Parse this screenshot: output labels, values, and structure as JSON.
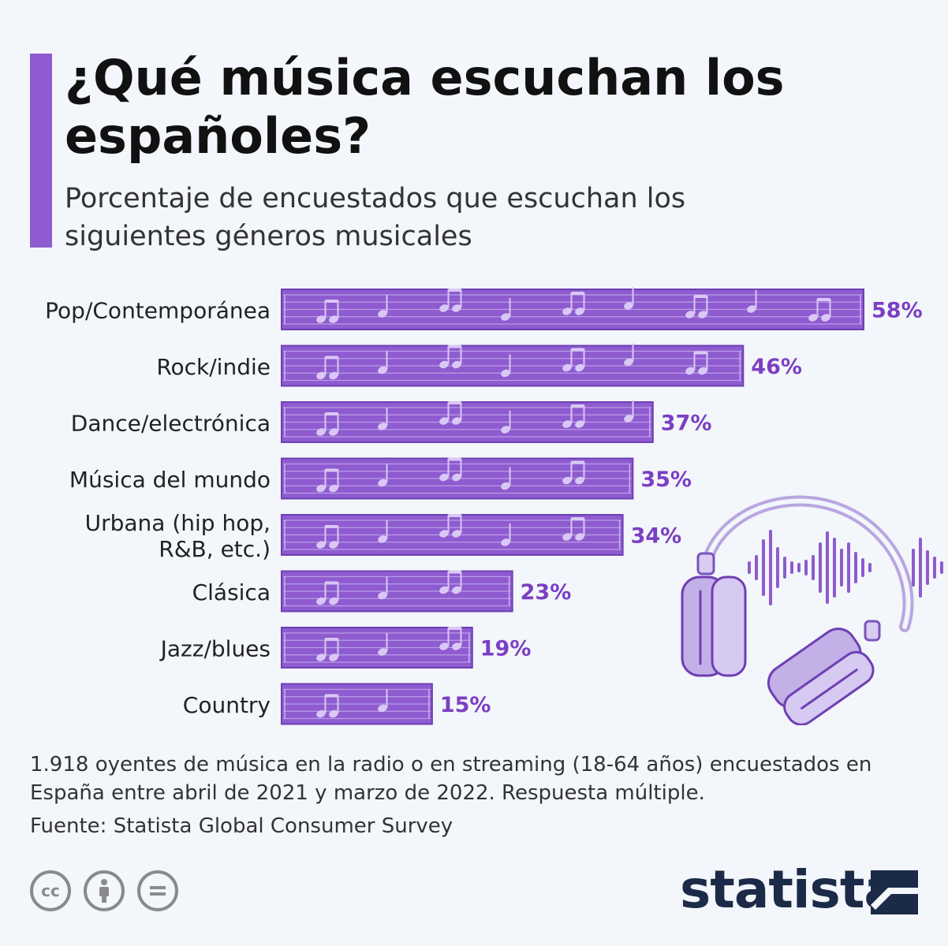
{
  "header": {
    "title": "¿Qué música escuchan los españoles?",
    "subtitle": "Porcentaje de encuestados que escuchan los siguientes géneros musicales"
  },
  "colors": {
    "accent": "#8e5bd0",
    "bar": "#8e5bd0",
    "bar_border": "#6e3fb4",
    "value_label": "#7b3fc4",
    "brand": "#1b2a47"
  },
  "chart_data": {
    "type": "bar",
    "orientation": "horizontal",
    "categories": [
      "Pop/Contemporánea",
      "Rock/indie",
      "Dance/electrónica",
      "Música del mundo",
      "Urbana (hip hop, R&B, etc.)",
      "Clásica",
      "Jazz/blues",
      "Country"
    ],
    "category_lines": [
      [
        "Pop/Contemporánea"
      ],
      [
        "Rock/indie"
      ],
      [
        "Dance/electrónica"
      ],
      [
        "Música del mundo"
      ],
      [
        "Urbana (hip hop,",
        "R&B, etc.)"
      ],
      [
        "Clásica"
      ],
      [
        "Jazz/blues"
      ],
      [
        "Country"
      ]
    ],
    "values": [
      58,
      46,
      37,
      35,
      34,
      23,
      19,
      15
    ],
    "value_labels": [
      "58%",
      "46%",
      "37%",
      "35%",
      "34%",
      "23%",
      "19%",
      "15%"
    ],
    "xlim": [
      0,
      58
    ],
    "grid": false,
    "legend": "none"
  },
  "footnote": "1.918 oyentes de música en la radio o en streaming (18-64 años) encuestados en España entre abril de 2021 y marzo de 2022. Respuesta múltiple.",
  "source": "Fuente: Statista Global Consumer Survey",
  "license_icons": [
    "creative-commons-icon",
    "attribution-icon",
    "no-derivatives-icon"
  ],
  "brand": "statista"
}
